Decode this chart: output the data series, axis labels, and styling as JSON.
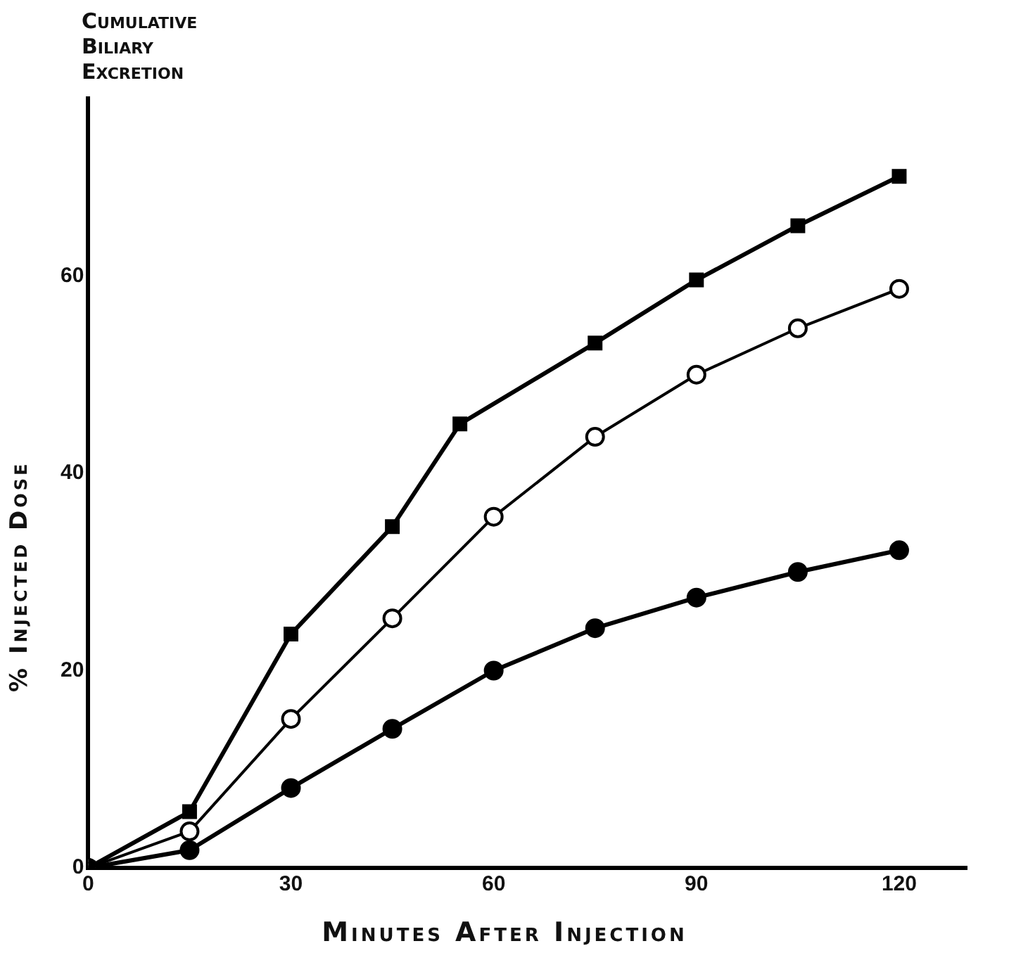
{
  "chart_data": {
    "type": "line",
    "title": "Cumulative Biliary Excretion",
    "xlabel": "Minutes After Injection",
    "ylabel": "% Injected Dose",
    "xlim": [
      0,
      130
    ],
    "xticks": [
      0,
      30,
      60,
      90,
      120
    ],
    "ylim": [
      0,
      78
    ],
    "yticks": [
      0,
      20,
      40,
      60
    ],
    "grid": false,
    "legend": false,
    "line_style": "solid",
    "series": [
      {
        "color": "#000000",
        "marker": "square",
        "x": [
          0,
          15,
          30,
          45,
          55,
          75,
          90,
          105,
          120
        ],
        "values": [
          0,
          5.7,
          23.7,
          34.6,
          45,
          53.2,
          59.6,
          65.1,
          70.1
        ]
      },
      {
        "color": "#000000",
        "marker": "circle",
        "x": [
          0,
          15,
          30,
          45,
          60,
          75,
          90,
          105,
          120
        ],
        "values": [
          0,
          3.7,
          15.1,
          25.3,
          35.6,
          43.7,
          50,
          54.7,
          58.7
        ]
      },
      {
        "color": "#000000",
        "marker": "circle",
        "x": [
          0,
          15,
          30,
          45,
          60,
          75,
          90,
          105,
          120
        ],
        "values": [
          0,
          1.8,
          8.1,
          14.1,
          20,
          24.3,
          27.4,
          30,
          32.2
        ]
      }
    ]
  }
}
